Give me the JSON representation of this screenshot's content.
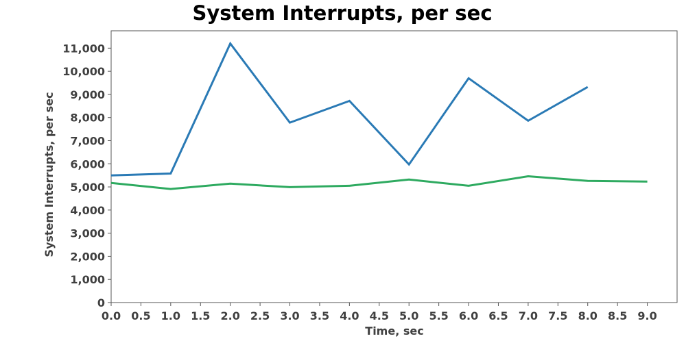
{
  "chart_data": {
    "type": "line",
    "title": "System Interrupts, per sec",
    "xlabel": "Time, sec",
    "ylabel": "System Interrupts, per sec",
    "xlim": [
      0,
      9.5
    ],
    "ylim": [
      0,
      11750
    ],
    "x_ticks": [
      "0.0",
      "0.5",
      "1.0",
      "1.5",
      "2.0",
      "2.5",
      "3.0",
      "3.5",
      "4.0",
      "4.5",
      "5.0",
      "5.5",
      "6.0",
      "6.5",
      "7.0",
      "7.5",
      "8.0",
      "8.5",
      "9.0"
    ],
    "x_tick_values": [
      0,
      0.5,
      1,
      1.5,
      2,
      2.5,
      3,
      3.5,
      4,
      4.5,
      5,
      5.5,
      6,
      6.5,
      7,
      7.5,
      8,
      8.5,
      9
    ],
    "y_ticks": [
      "0",
      "1,000",
      "2,000",
      "3,000",
      "4,000",
      "5,000",
      "6,000",
      "7,000",
      "8,000",
      "9,000",
      "10,000",
      "11,000"
    ],
    "y_tick_values": [
      0,
      1000,
      2000,
      3000,
      4000,
      5000,
      6000,
      7000,
      8000,
      9000,
      10000,
      11000
    ],
    "grid": true,
    "legend": "none",
    "series": [
      {
        "color": "#2a7ab5",
        "x": [
          0,
          1,
          2,
          3,
          4,
          5,
          6,
          7,
          8
        ],
        "values": [
          5500,
          5580,
          11200,
          7780,
          8720,
          5970,
          9700,
          7860,
          9320
        ]
      },
      {
        "color": "#2eaa60",
        "x": [
          0,
          1,
          2,
          3,
          4,
          5,
          6,
          7,
          8,
          9
        ],
        "values": [
          5170,
          4910,
          5140,
          4990,
          5050,
          5320,
          5050,
          5460,
          5260,
          5230
        ]
      }
    ]
  }
}
